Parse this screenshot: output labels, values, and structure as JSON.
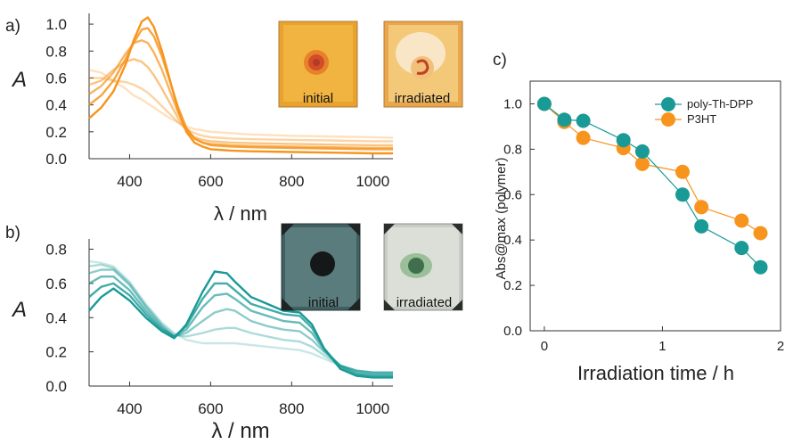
{
  "colors": {
    "orange": "#f7941d",
    "teal": "#1a9a96",
    "axis": "#333333"
  },
  "photos": {
    "a_initial": "initial",
    "a_irradiated": "irradiated",
    "b_initial": "initial",
    "b_irradiated": "irradiated"
  },
  "chart_data": [
    {
      "panel": "a)",
      "type": "line",
      "xlabel": "λ / nm",
      "ylabel": "A",
      "xlim": [
        300,
        1050
      ],
      "ylim": [
        0,
        1.08
      ],
      "xticks": [
        400,
        600,
        800,
        1000
      ],
      "yticks": [
        "0.0",
        "0.2",
        "0.4",
        "0.6",
        "0.8",
        "1.0"
      ],
      "series": [
        {
          "opacity": 1.0,
          "x": [
            300,
            330,
            360,
            390,
            410,
            430,
            445,
            460,
            480,
            500,
            520,
            540,
            560,
            580,
            600,
            650,
            700,
            800,
            900,
            1000,
            1050
          ],
          "y": [
            0.3,
            0.38,
            0.5,
            0.7,
            0.88,
            1.02,
            1.05,
            0.98,
            0.8,
            0.58,
            0.36,
            0.2,
            0.12,
            0.09,
            0.07,
            0.06,
            0.055,
            0.05,
            0.045,
            0.04,
            0.04
          ]
        },
        {
          "opacity": 0.85,
          "x": [
            300,
            330,
            360,
            390,
            410,
            430,
            445,
            460,
            480,
            500,
            520,
            540,
            560,
            580,
            600,
            650,
            700,
            800,
            900,
            1000,
            1050
          ],
          "y": [
            0.4,
            0.47,
            0.58,
            0.74,
            0.86,
            0.96,
            0.97,
            0.91,
            0.76,
            0.57,
            0.38,
            0.23,
            0.15,
            0.12,
            0.1,
            0.09,
            0.085,
            0.08,
            0.075,
            0.07,
            0.07
          ]
        },
        {
          "opacity": 0.7,
          "x": [
            300,
            330,
            360,
            390,
            410,
            430,
            445,
            460,
            480,
            500,
            520,
            540,
            560,
            580,
            600,
            650,
            700,
            800,
            900,
            1000,
            1050
          ],
          "y": [
            0.48,
            0.54,
            0.64,
            0.78,
            0.86,
            0.88,
            0.86,
            0.79,
            0.66,
            0.5,
            0.34,
            0.22,
            0.15,
            0.12,
            0.11,
            0.1,
            0.095,
            0.09,
            0.085,
            0.08,
            0.08
          ]
        },
        {
          "opacity": 0.55,
          "x": [
            300,
            330,
            360,
            390,
            410,
            430,
            445,
            460,
            480,
            500,
            520,
            540,
            560,
            580,
            600,
            650,
            700,
            800,
            900,
            1000,
            1050
          ],
          "y": [
            0.55,
            0.58,
            0.66,
            0.72,
            0.74,
            0.72,
            0.68,
            0.62,
            0.52,
            0.41,
            0.3,
            0.21,
            0.16,
            0.14,
            0.13,
            0.12,
            0.115,
            0.11,
            0.105,
            0.1,
            0.1
          ]
        },
        {
          "opacity": 0.4,
          "x": [
            300,
            330,
            360,
            390,
            410,
            430,
            445,
            460,
            480,
            500,
            520,
            540,
            560,
            580,
            600,
            650,
            700,
            800,
            900,
            1000,
            1050
          ],
          "y": [
            0.6,
            0.6,
            0.58,
            0.57,
            0.55,
            0.52,
            0.49,
            0.45,
            0.39,
            0.33,
            0.27,
            0.22,
            0.19,
            0.17,
            0.16,
            0.15,
            0.145,
            0.14,
            0.135,
            0.13,
            0.13
          ]
        },
        {
          "opacity": 0.28,
          "x": [
            300,
            330,
            360,
            390,
            410,
            430,
            445,
            460,
            480,
            500,
            520,
            540,
            560,
            580,
            600,
            650,
            700,
            800,
            900,
            1000,
            1050
          ],
          "y": [
            0.66,
            0.64,
            0.58,
            0.52,
            0.47,
            0.44,
            0.41,
            0.38,
            0.34,
            0.3,
            0.27,
            0.24,
            0.22,
            0.21,
            0.2,
            0.19,
            0.18,
            0.17,
            0.165,
            0.16,
            0.155
          ]
        }
      ]
    },
    {
      "panel": "b)",
      "type": "line",
      "xlabel": "λ / nm",
      "ylabel": "A",
      "xlim": [
        300,
        1050
      ],
      "ylim": [
        0,
        0.86
      ],
      "xticks": [
        400,
        600,
        800,
        1000
      ],
      "yticks": [
        "0.0",
        "0.2",
        "0.4",
        "0.6",
        "0.8"
      ],
      "series": [
        {
          "opacity": 1.0,
          "x": [
            300,
            330,
            360,
            400,
            440,
            480,
            510,
            540,
            580,
            610,
            640,
            660,
            700,
            740,
            780,
            820,
            850,
            880,
            920,
            960,
            1000,
            1050
          ],
          "y": [
            0.44,
            0.52,
            0.57,
            0.5,
            0.4,
            0.32,
            0.28,
            0.36,
            0.55,
            0.67,
            0.66,
            0.61,
            0.52,
            0.48,
            0.44,
            0.43,
            0.36,
            0.22,
            0.1,
            0.06,
            0.05,
            0.05
          ]
        },
        {
          "opacity": 0.82,
          "x": [
            300,
            330,
            360,
            400,
            440,
            480,
            510,
            540,
            580,
            610,
            640,
            660,
            700,
            740,
            780,
            820,
            850,
            880,
            920,
            960,
            1000,
            1050
          ],
          "y": [
            0.52,
            0.58,
            0.6,
            0.53,
            0.42,
            0.33,
            0.29,
            0.35,
            0.51,
            0.6,
            0.6,
            0.56,
            0.48,
            0.45,
            0.42,
            0.41,
            0.34,
            0.22,
            0.11,
            0.07,
            0.06,
            0.06
          ]
        },
        {
          "opacity": 0.66,
          "x": [
            300,
            330,
            360,
            400,
            440,
            480,
            510,
            540,
            580,
            610,
            640,
            660,
            700,
            740,
            780,
            820,
            850,
            880,
            920,
            960,
            1000,
            1050
          ],
          "y": [
            0.6,
            0.64,
            0.64,
            0.56,
            0.44,
            0.34,
            0.29,
            0.33,
            0.46,
            0.53,
            0.54,
            0.51,
            0.44,
            0.41,
            0.38,
            0.37,
            0.31,
            0.21,
            0.12,
            0.08,
            0.07,
            0.07
          ]
        },
        {
          "opacity": 0.5,
          "x": [
            300,
            330,
            360,
            400,
            440,
            480,
            510,
            540,
            580,
            610,
            640,
            660,
            700,
            740,
            780,
            820,
            850,
            880,
            920,
            960,
            1000,
            1050
          ],
          "y": [
            0.66,
            0.68,
            0.68,
            0.59,
            0.46,
            0.35,
            0.29,
            0.31,
            0.38,
            0.43,
            0.45,
            0.44,
            0.38,
            0.35,
            0.33,
            0.32,
            0.27,
            0.2,
            0.12,
            0.09,
            0.08,
            0.08
          ]
        },
        {
          "opacity": 0.36,
          "x": [
            300,
            330,
            360,
            400,
            440,
            480,
            510,
            540,
            580,
            610,
            640,
            660,
            700,
            740,
            780,
            820,
            850,
            880,
            920,
            960,
            1000,
            1050
          ],
          "y": [
            0.7,
            0.71,
            0.69,
            0.6,
            0.47,
            0.36,
            0.3,
            0.29,
            0.31,
            0.33,
            0.34,
            0.34,
            0.31,
            0.29,
            0.27,
            0.26,
            0.23,
            0.18,
            0.12,
            0.09,
            0.08,
            0.08
          ]
        },
        {
          "opacity": 0.24,
          "x": [
            300,
            330,
            360,
            400,
            440,
            480,
            510,
            540,
            580,
            610,
            640,
            660,
            700,
            740,
            780,
            820,
            850,
            880,
            920,
            960,
            1000,
            1050
          ],
          "y": [
            0.73,
            0.72,
            0.7,
            0.61,
            0.48,
            0.37,
            0.31,
            0.27,
            0.25,
            0.25,
            0.25,
            0.25,
            0.24,
            0.23,
            0.22,
            0.21,
            0.19,
            0.16,
            0.12,
            0.09,
            0.08,
            0.08
          ]
        }
      ]
    },
    {
      "panel": "c)",
      "type": "scatter",
      "xlabel": "Irradiation time / h",
      "ylabel": "Abs@max  (polymer)",
      "xlim": [
        -0.12,
        2.0
      ],
      "ylim": [
        0.0,
        1.1
      ],
      "xticks": [
        "0",
        "1",
        "2"
      ],
      "yticks": [
        "0.0",
        "0.2",
        "0.4",
        "0.6",
        "0.8",
        "1.0"
      ],
      "legend": "top-right",
      "series": [
        {
          "name": "poly-Th-DPP",
          "color": "#1a9a96",
          "x": [
            0,
            0.17,
            0.33,
            0.67,
            0.83,
            1.17,
            1.33,
            1.67,
            1.83
          ],
          "y": [
            1.0,
            0.93,
            0.925,
            0.84,
            0.79,
            0.6,
            0.46,
            0.365,
            0.28
          ]
        },
        {
          "name": "P3HT",
          "color": "#f7941d",
          "x": [
            0,
            0.17,
            0.33,
            0.67,
            0.83,
            1.17,
            1.33,
            1.67,
            1.83
          ],
          "y": [
            1.0,
            0.92,
            0.85,
            0.805,
            0.735,
            0.7,
            0.545,
            0.485,
            0.43
          ]
        }
      ]
    }
  ]
}
